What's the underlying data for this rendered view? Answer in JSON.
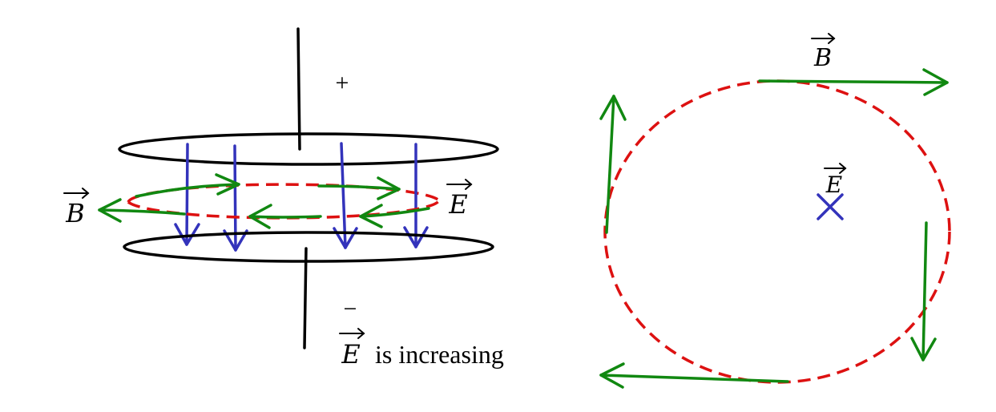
{
  "left_panel": {
    "plus_sign": "+",
    "minus_sign": "−",
    "b_label": "B",
    "e_label": "E",
    "caption_symbol": "E",
    "caption_text": "is increasing"
  },
  "right_panel": {
    "b_label": "B",
    "e_label": "E",
    "e_direction_mark": "×"
  },
  "colors": {
    "plates": "#000000",
    "electric_field": "#3333bb",
    "magnetic_field": "#118811",
    "amperian_loop": "#dd1111"
  }
}
